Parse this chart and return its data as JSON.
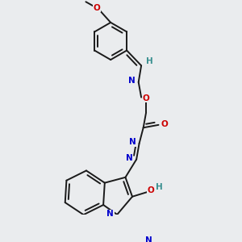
{
  "background_color": "#eaecee",
  "figure_size": [
    3.0,
    3.0
  ],
  "dpi": 100,
  "bond_color": "#1a1a1a",
  "bond_width": 1.4,
  "atom_bg": "#eaecee",
  "colors": {
    "N": "#0000cc",
    "O": "#cc0000",
    "H_teal": "#3a9090",
    "C": "#1a1a1a"
  },
  "font_size": 7.5
}
